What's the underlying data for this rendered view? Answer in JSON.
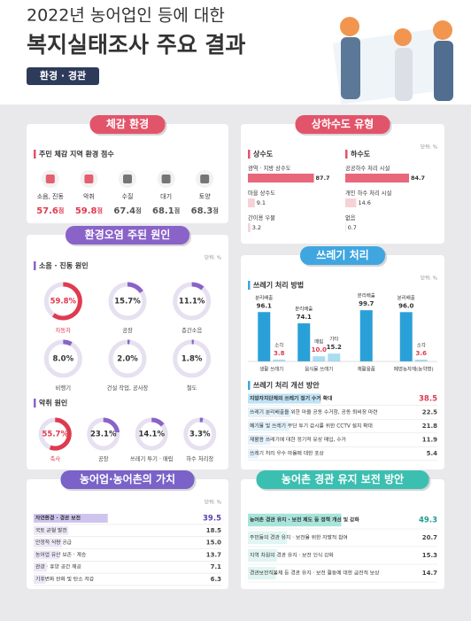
{
  "header": {
    "line1": "2022년 농어업인 등에 대한",
    "line2": "복지실태조사 주요 결과",
    "tag": "환경 · 경관"
  },
  "chart_data": [
    {
      "type": "score",
      "title": "체감 환경",
      "color": "#e2546a",
      "subtitle": "주민 체감 지역 환경 점수",
      "categories": [
        "소음, 진동",
        "악취",
        "수질",
        "대기",
        "토양"
      ],
      "values": [
        57.6,
        59.8,
        67.4,
        68.1,
        68.3
      ],
      "unit": "점",
      "value_colors": [
        "#e03a4f",
        "#e03a4f",
        "#555555",
        "#555555",
        "#555555"
      ]
    },
    {
      "type": "hbar-groups",
      "title": "상하수도 유형",
      "color": "#e2546a",
      "unit_label": "단위: %",
      "xlim": [
        0,
        100
      ],
      "bar_color": "#f6d2d6",
      "highlight_color": "#e8677a",
      "groups": [
        {
          "name": "상수도",
          "categories": [
            "광역 · 지방 상수도",
            "마을 상수도",
            "간이용 우물"
          ],
          "values": [
            87.7,
            9.1,
            3.2
          ]
        },
        {
          "name": "하수도",
          "categories": [
            "공공하수 처리 시설",
            "개인 하수 처리 시설",
            "없음"
          ],
          "values": [
            84.7,
            14.6,
            0.7
          ]
        }
      ]
    },
    {
      "type": "donut-groups",
      "title": "환경오염 주된 원인",
      "color": "#8a63c8",
      "unit_label": "단위: %",
      "xlim": [
        0,
        100
      ],
      "ring_color": "#8a63c8",
      "track_color": "#e6e0f0",
      "highlight_color": "#e03a4f",
      "groups": [
        {
          "name": "소음 · 진동 원인",
          "categories": [
            "자동차",
            "공장",
            "층간소음",
            "비행기",
            "건설 작업, 공사장",
            "철도"
          ],
          "values": [
            59.8,
            15.7,
            11.1,
            8.0,
            2.0,
            1.8
          ],
          "value_labels": [
            "59.8%",
            "15.7%",
            "11.1%",
            "8.0%",
            "2.0%",
            "1.8%"
          ]
        },
        {
          "name": "악취 원인",
          "categories": [
            "축사",
            "공장",
            "쓰레기 투기 · 매립",
            "하수 처리장"
          ],
          "values": [
            55.7,
            23.1,
            14.1,
            3.3
          ],
          "value_labels": [
            "55.7%",
            "23.1%",
            "14.1%",
            "3.3%"
          ]
        }
      ]
    },
    {
      "type": "grouped-bar",
      "title": "쓰레기 처리",
      "color": "#3fa6e0",
      "subtitle": "쓰레기 처리 방법",
      "unit_label": "단위: %",
      "ylim": [
        0,
        100
      ],
      "categories": [
        "생활 쓰레기",
        "음식물 쓰레기",
        "재활용품",
        "폐영농자재(농약병)"
      ],
      "series": [
        {
          "name": "분리배출",
          "color": "#2aa0d8",
          "label_color": "#333333",
          "values": [
            96.1,
            74.1,
            99.7,
            96.0
          ],
          "value_labels": [
            "96.1",
            "74.1",
            "99.7",
            "96.0"
          ]
        },
        {
          "name": "소각",
          "color": "#a9ddf2",
          "label_color": "#e03a4f",
          "values": [
            3.8,
            null,
            null,
            3.6
          ],
          "value_labels": [
            "3.8",
            null,
            null,
            "3.6"
          ]
        },
        {
          "name": "매립",
          "color": "#a9ddf2",
          "label_color": "#e03a4f",
          "values": [
            null,
            10.0,
            null,
            null
          ],
          "value_labels": [
            null,
            "10.0",
            null,
            null
          ]
        },
        {
          "name": "기타",
          "color": "#a9ddf2",
          "label_color": "#333333",
          "values": [
            null,
            15.2,
            null,
            null
          ],
          "value_labels": [
            null,
            "15.2",
            null,
            null
          ]
        }
      ]
    },
    {
      "type": "hbar-list",
      "subtitle": "쓰레기 처리 개선 방안",
      "color": "#3fa6e0",
      "xlim": [
        0,
        100
      ],
      "bar_color": "#e3f2fb",
      "highlight_color": "#bfe3f5",
      "highlight_text_color": "#e03a4f",
      "categories": [
        "지방자치단체의 쓰레기 정기 수거 확대",
        "쓰레기 분리배출을 위한 마을 공동 수거함, 공동 퇴비장 마련",
        "폐기물 및 쓰레기 무단 투기 감시를 위한 CCTV 설치 확대",
        "재활용 쓰레기에 대한 정기적 유상 매입, 수거",
        "쓰레기 처리 우수 마을에 대한 포상"
      ],
      "values": [
        38.5,
        22.5,
        21.8,
        11.9,
        5.4
      ],
      "value_labels": [
        "38.5",
        "22.5",
        "21.8",
        "11.9",
        "5.4"
      ]
    },
    {
      "type": "hbar-list",
      "title": "농어업·농어촌의 가치",
      "color": "#7a62c8",
      "unit_label": "단위: %",
      "xlim": [
        0,
        100
      ],
      "bar_color": "#ece8f7",
      "highlight_color": "#cfc4ee",
      "highlight_text_color": "#5a3fb5",
      "categories": [
        "자연환경 · 경관 보전",
        "국토 균형 발전",
        "안정적 식량 공급",
        "농어업 유산 보존 · 계승",
        "관광 · 휴양 공간 제공",
        "기후변화 완화 및 탄소 저감"
      ],
      "values": [
        39.5,
        18.5,
        15.0,
        13.7,
        7.1,
        6.3
      ],
      "value_labels": [
        "39.5",
        "18.5",
        "15.0",
        "13.7",
        "7.1",
        "6.3"
      ]
    },
    {
      "type": "hbar-list",
      "title": "농어촌 경관 유지 보전 방안",
      "color": "#3bbfb0",
      "xlim": [
        0,
        100
      ],
      "bar_color": "#e1f5f2",
      "highlight_color": "#a8e4dc",
      "highlight_text_color": "#1f9c8f",
      "categories": [
        "농어촌 경관 유지 · 보전 제도 등 정책 개선 및 강화",
        "주민들의 경관 유지 · 보전을 위한 자발적 참여",
        "지역 차원의 경관 유지 · 보전 인식 강화",
        "경관보전직불제 등 경관 유지 · 보전 활동에 대한 금전적 보상"
      ],
      "values": [
        49.3,
        20.7,
        15.3,
        14.7
      ],
      "value_labels": [
        "49.3",
        "20.7",
        "15.3",
        "14.7"
      ]
    }
  ]
}
